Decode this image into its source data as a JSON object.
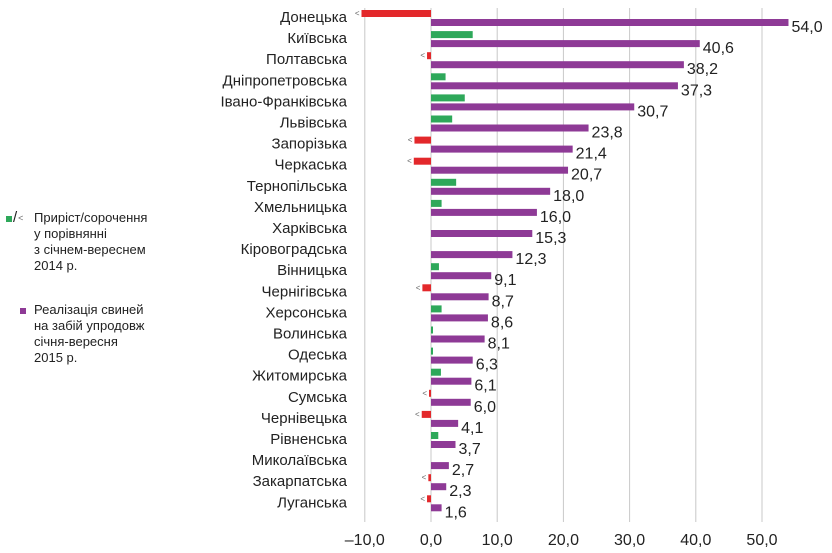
{
  "chart_data": {
    "type": "bar",
    "orientation": "horizontal",
    "categories": [
      "Донецька",
      "Київська",
      "Полтавська",
      "Дніпропетровська",
      "Івано-Франківська",
      "Львівська",
      "Запорізька",
      "Черкаська",
      "Тернопільська",
      "Хмельницька",
      "Харківська",
      "Кіровоградська",
      "Вінницька",
      "Чернігівська",
      "Херсонська",
      "Волинська",
      "Одеська",
      "Житомирська",
      "Сумська",
      "Чернівецька",
      "Рівненська",
      "Миколаївська",
      "Закарпатська",
      "Луганська"
    ],
    "series": [
      {
        "name": "Реалізація свиней на забій упродовж січня-вересня 2015 р.",
        "color": "#8e3a96",
        "values": [
          54.0,
          40.6,
          38.2,
          37.3,
          30.7,
          23.8,
          21.4,
          20.7,
          18.0,
          16.0,
          15.3,
          12.3,
          9.1,
          8.7,
          8.6,
          8.1,
          6.3,
          6.1,
          6.0,
          4.1,
          3.7,
          2.7,
          2.3,
          1.6
        ],
        "labels": [
          "54,0",
          "40,6",
          "38,2",
          "37,3",
          "30,7",
          "23,8",
          "21,4",
          "20,7",
          "18,0",
          "16,0",
          "15,3",
          "12,3",
          "9,1",
          "8,7",
          "8,6",
          "8,1",
          "6,3",
          "6,1",
          "6,0",
          "4,1",
          "3,7",
          "2,7",
          "2,3",
          "1,6"
        ]
      },
      {
        "name": "Приріст/сорочення у порівнянні з січнем-вереснем 2014 р.",
        "color_growth": "#2ea85a",
        "color_decline": "#e3282b",
        "values": [
          -10.5,
          6.3,
          -0.6,
          2.2,
          5.1,
          3.2,
          -2.5,
          -2.6,
          3.8,
          1.6,
          0,
          0,
          1.2,
          -1.3,
          1.6,
          0.3,
          0.3,
          1.5,
          -0.3,
          -1.4,
          1.1,
          0,
          -0.4,
          -0.6
        ]
      }
    ],
    "xlim": [
      -10,
      54
    ],
    "xticks": [
      "–10,0",
      "0,0",
      "10,0",
      "20,0",
      "30,0",
      "40,0",
      "50,0"
    ],
    "xtick_values": [
      -10,
      0,
      10,
      20,
      30,
      40,
      50
    ],
    "grid": true,
    "legend_position": "left",
    "xlabel": "",
    "ylabel": ""
  },
  "legend": {
    "growth_text": "Приріст/сорочення у порівнянні з січнем-вереснем 2014 р.",
    "growth_lines": [
      "Приріст/сорочення",
      "у порівнянні",
      "з січнем-вереснем",
      "2014 р."
    ],
    "sales_lines": [
      "Реалізація свиней",
      "на забій упродовж",
      "січня-вересня",
      "2015 р."
    ]
  }
}
